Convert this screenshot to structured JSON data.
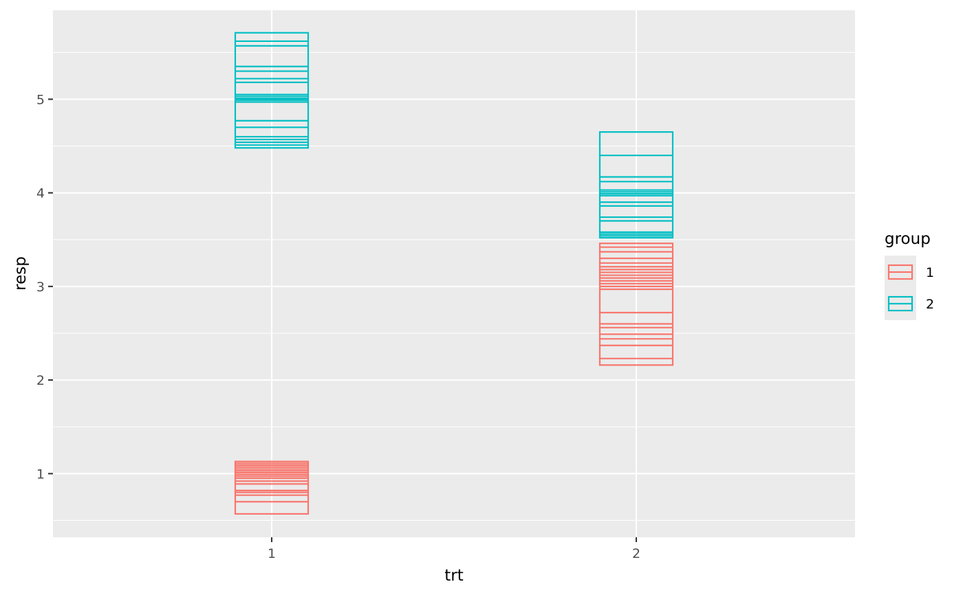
{
  "chart_data": {
    "type": "crossbar",
    "x_categories": [
      "1",
      "2"
    ],
    "xlabel": "trt",
    "ylabel": "resp",
    "xlim": [
      0.4,
      2.6
    ],
    "ylim": [
      0.32,
      5.95
    ],
    "y_ticks": [
      1,
      2,
      3,
      4,
      5
    ],
    "grid": true,
    "legend": {
      "title": "group",
      "placement": "right",
      "entries": [
        {
          "label": "1",
          "color": "#F8766D"
        },
        {
          "label": "2",
          "color": "#00BFC4"
        }
      ]
    },
    "box_width": 0.2,
    "series": [
      {
        "group": "1",
        "color": "#F8766D",
        "boxes": [
          {
            "x": 1,
            "ymin": 0.57,
            "ymax": 1.13,
            "lines": [
              0.7,
              0.77,
              0.8,
              0.82,
              0.89,
              0.92,
              0.95,
              0.97,
              0.99,
              1.01,
              1.03,
              1.05,
              1.07,
              1.09,
              1.11
            ]
          },
          {
            "x": 2,
            "ymin": 2.16,
            "ymax": 3.46,
            "lines": [
              2.23,
              2.37,
              2.44,
              2.49,
              2.56,
              2.6,
              2.72,
              2.97,
              3.0,
              3.03,
              3.06,
              3.09,
              3.12,
              3.15,
              3.18,
              3.21,
              3.25,
              3.3,
              3.37,
              3.42
            ]
          }
        ]
      },
      {
        "group": "2",
        "color": "#00BFC4",
        "boxes": [
          {
            "x": 1,
            "ymin": 4.48,
            "ymax": 5.71,
            "lines": [
              4.51,
              4.54,
              4.57,
              4.6,
              4.7,
              4.77,
              4.97,
              4.99,
              5.0,
              5.01,
              5.03,
              5.05,
              5.18,
              5.22,
              5.3,
              5.35,
              5.57,
              5.62
            ]
          },
          {
            "x": 2,
            "ymin": 3.52,
            "ymax": 4.65,
            "lines": [
              3.54,
              3.56,
              3.58,
              3.7,
              3.74,
              3.86,
              3.9,
              3.97,
              3.99,
              4.01,
              4.03,
              4.12,
              4.17,
              4.4
            ]
          }
        ]
      }
    ]
  }
}
